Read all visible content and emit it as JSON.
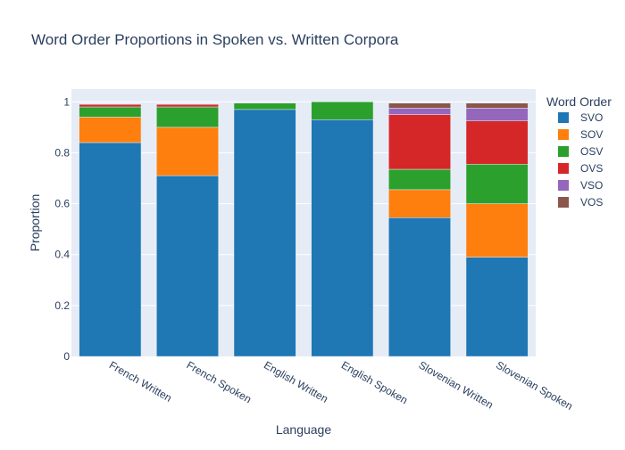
{
  "chart_data": {
    "type": "bar",
    "stacked": true,
    "title": "Word Order Proportions in Spoken vs. Written Corpora",
    "xlabel": "Language",
    "ylabel": "Proportion",
    "ylim": [
      0,
      1.05
    ],
    "yticks": [
      0,
      0.2,
      0.4,
      0.6,
      0.8,
      1
    ],
    "ytick_labels": [
      "0",
      "0.2",
      "0.4",
      "0.6",
      "0.8",
      "1"
    ],
    "grid": true,
    "legend_title": "Word Order",
    "legend_position": "right",
    "categories": [
      "French Written",
      "French Spoken",
      "English Written",
      "English Spoken",
      "Slovenian Written",
      "Slovenian Spoken"
    ],
    "series": [
      {
        "name": "SVO",
        "color": "#1f77b4",
        "values": [
          0.84,
          0.71,
          0.97,
          0.93,
          0.545,
          0.39
        ]
      },
      {
        "name": "SOV",
        "color": "#ff7f0e",
        "values": [
          0.1,
          0.19,
          0.0,
          0.0,
          0.11,
          0.21
        ]
      },
      {
        "name": "OSV",
        "color": "#2ca02c",
        "values": [
          0.04,
          0.08,
          0.025,
          0.07,
          0.08,
          0.155
        ]
      },
      {
        "name": "OVS",
        "color": "#d62728",
        "values": [
          0.01,
          0.01,
          0.0,
          0.0,
          0.215,
          0.17
        ]
      },
      {
        "name": "VSO",
        "color": "#9467bd",
        "values": [
          0.0,
          0.0,
          0.0,
          0.0,
          0.025,
          0.05
        ]
      },
      {
        "name": "VOS",
        "color": "#8c564b",
        "values": [
          0.0,
          0.0,
          0.0,
          0.0,
          0.02,
          0.02
        ]
      }
    ]
  }
}
